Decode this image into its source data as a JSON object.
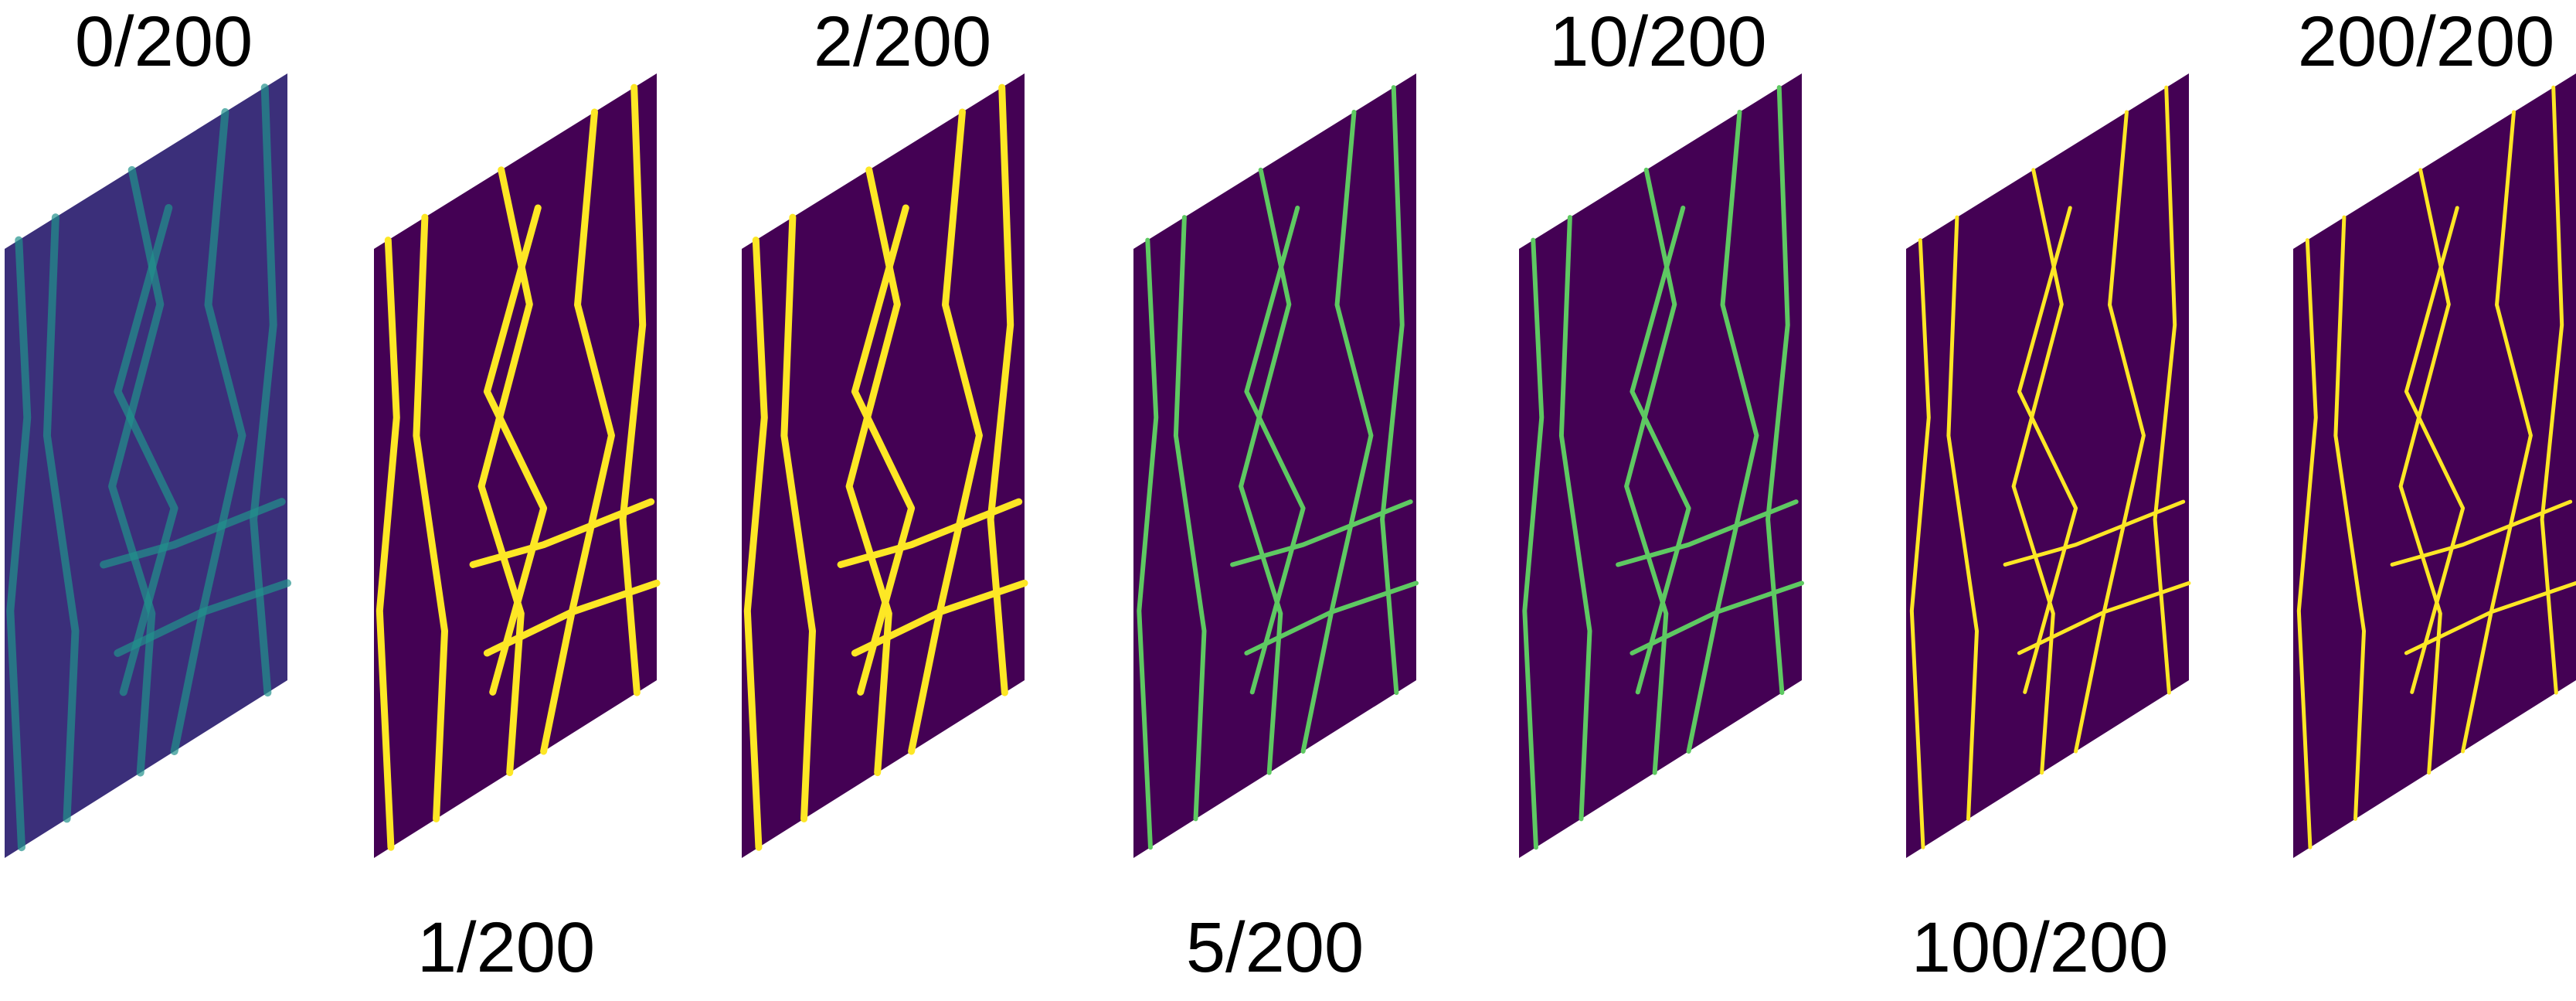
{
  "colors": {
    "background": "#440154",
    "noise": "#3b2f7a",
    "line_dim": "#21918c",
    "line_mid": "#5ec962",
    "line_bright": "#fde725"
  },
  "panels": [
    {
      "label": "0/200",
      "label_pos": "top",
      "style": "noisy"
    },
    {
      "label": "1/200",
      "label_pos": "bottom",
      "style": "thick"
    },
    {
      "label": "2/200",
      "label_pos": "top",
      "style": "thick"
    },
    {
      "label": "5/200",
      "label_pos": "bottom",
      "style": "medium"
    },
    {
      "label": "10/200",
      "label_pos": "top",
      "style": "medium"
    },
    {
      "label": "100/200",
      "label_pos": "bottom",
      "style": "thin"
    },
    {
      "label": "200/200",
      "label_pos": "top",
      "style": "thin"
    }
  ]
}
